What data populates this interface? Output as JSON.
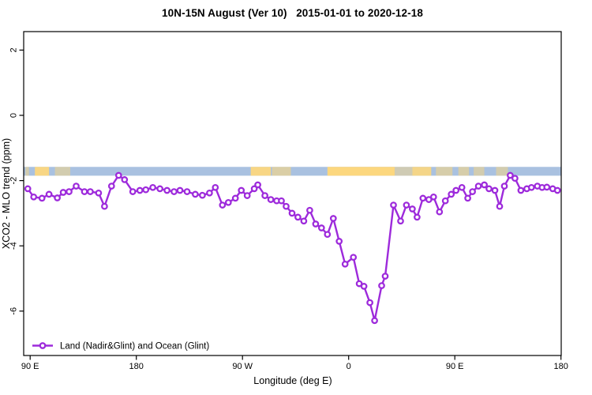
{
  "chart_data": {
    "type": "line",
    "title": "10N-15N August (Ver 10)   2015-01-01 to 2020-12-18",
    "xlabel": "Longitude (deg E)",
    "ylabel": "XCO2 - MLO trend (ppm)",
    "grid": false,
    "legend_position": "bottom-left",
    "x_ticks": [
      {
        "lon": -270,
        "label": "90 E"
      },
      {
        "lon": -180,
        "label": "180"
      },
      {
        "lon": -90,
        "label": "90 W"
      },
      {
        "lon": 0,
        "label": "0"
      },
      {
        "lon": 90,
        "label": "90 E"
      },
      {
        "lon": 180,
        "label": "180"
      }
    ],
    "y_ticks": [
      2,
      0,
      -2,
      -4,
      -6
    ],
    "xlim": [
      -275.5,
      180.3
    ],
    "ylim": [
      -7.4,
      2.6
    ],
    "band": {
      "y_range": [
        -1.58,
        -1.85
      ],
      "color": "#A9C1E0",
      "orange_color": "#FCD77E",
      "orange_segments": [
        {
          "from": -274,
          "to": -271,
          "opacity": 0.5
        },
        {
          "from": -266,
          "to": -254,
          "opacity": 0.95
        },
        {
          "from": -249,
          "to": -236,
          "opacity": 0.5
        },
        {
          "from": -83,
          "to": -66,
          "opacity": 0.95
        },
        {
          "from": -65,
          "to": -49,
          "opacity": 0.6
        },
        {
          "from": -18,
          "to": 39,
          "opacity": 1
        },
        {
          "from": 39,
          "to": 54,
          "opacity": 0.45
        },
        {
          "from": 54,
          "to": 70,
          "opacity": 0.9
        },
        {
          "from": 74,
          "to": 88,
          "opacity": 0.55
        },
        {
          "from": 93,
          "to": 102,
          "opacity": 0.55
        },
        {
          "from": 106,
          "to": 115,
          "opacity": 0.5
        },
        {
          "from": 125,
          "to": 135,
          "opacity": 0.5
        }
      ]
    },
    "series": [
      {
        "name": "Land (Nadir&Glint) and Ocean (Glint)",
        "color": "#9D2ADB",
        "marker": "open-circle",
        "lon": [
          -272,
          -267,
          -260,
          -254,
          -247,
          -242,
          -237,
          -231,
          -224,
          -219,
          -212,
          -207,
          -201,
          -195,
          -190,
          -183,
          -177,
          -172,
          -166,
          -160,
          -154,
          -148,
          -143,
          -137,
          -130,
          -124,
          -118,
          -113,
          -107,
          -102,
          -96,
          -91,
          -86,
          -80,
          -77,
          -71,
          -66,
          -61,
          -57,
          -53,
          -48,
          -43,
          -38,
          -33,
          -28,
          -23,
          -18,
          -13,
          -8,
          -3,
          4,
          9,
          13,
          18,
          22,
          28,
          31,
          38,
          44,
          49,
          54,
          58,
          63,
          68,
          72,
          77,
          82,
          87,
          91,
          96,
          101,
          105,
          110,
          115,
          119,
          124,
          128,
          132,
          137,
          141,
          146,
          151,
          155,
          160,
          164,
          168,
          173,
          177
        ],
        "values": [
          -2.25,
          -2.5,
          -2.54,
          -2.42,
          -2.53,
          -2.36,
          -2.34,
          -2.17,
          -2.34,
          -2.34,
          -2.38,
          -2.79,
          -2.17,
          -1.84,
          -1.97,
          -2.34,
          -2.3,
          -2.28,
          -2.21,
          -2.25,
          -2.3,
          -2.34,
          -2.3,
          -2.34,
          -2.42,
          -2.45,
          -2.38,
          -2.21,
          -2.75,
          -2.67,
          -2.54,
          -2.3,
          -2.46,
          -2.25,
          -2.13,
          -2.46,
          -2.58,
          -2.62,
          -2.62,
          -2.79,
          -3.0,
          -3.12,
          -3.24,
          -2.91,
          -3.33,
          -3.45,
          -3.65,
          -3.16,
          -3.86,
          -4.56,
          -4.35,
          -5.16,
          -5.24,
          -5.74,
          -6.29,
          -5.22,
          -4.93,
          -2.75,
          -3.24,
          -2.75,
          -2.87,
          -3.12,
          -2.54,
          -2.58,
          -2.5,
          -2.96,
          -2.62,
          -2.42,
          -2.3,
          -2.21,
          -2.54,
          -2.34,
          -2.17,
          -2.13,
          -2.25,
          -2.3,
          -2.79,
          -2.17,
          -1.84,
          -1.93,
          -2.3,
          -2.25,
          -2.21,
          -2.17,
          -2.21,
          -2.2,
          -2.25,
          -2.3
        ]
      }
    ]
  }
}
